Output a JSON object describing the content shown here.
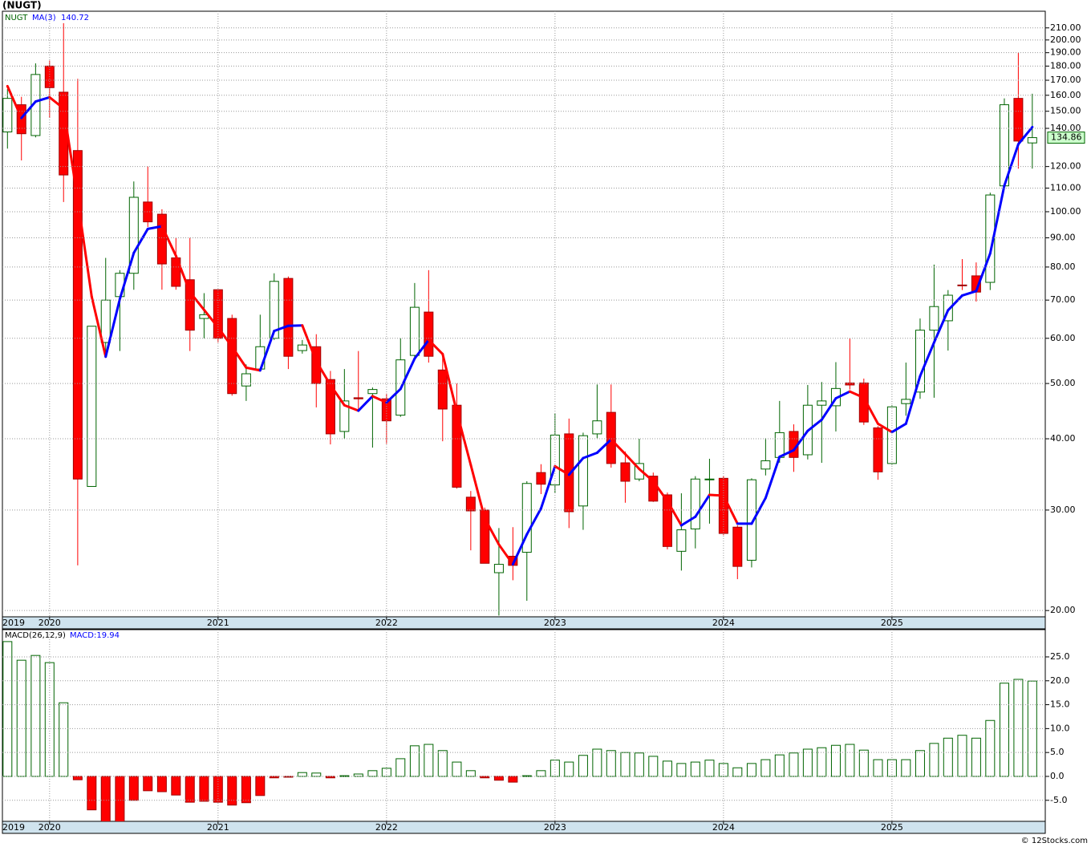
{
  "chart_data": [
    {
      "type": "candlestick",
      "title": "(NUGT)",
      "symbol": "NUGT",
      "log": true,
      "grid": true,
      "up_color": "#006400",
      "down_color": "#ff0000",
      "ma_up_color": "#0000ff",
      "ma_down_color": "#ff0000",
      "x": [
        2019.75,
        2019.833,
        2019.917,
        2020,
        2020.083,
        2020.167,
        2020.25,
        2020.333,
        2020.417,
        2020.5,
        2020.583,
        2020.667,
        2020.75,
        2020.833,
        2020.917,
        2021,
        2021.083,
        2021.167,
        2021.25,
        2021.333,
        2021.417,
        2021.5,
        2021.583,
        2021.667,
        2021.75,
        2021.833,
        2021.917,
        2022,
        2022.083,
        2022.167,
        2022.25,
        2022.333,
        2022.417,
        2022.5,
        2022.583,
        2022.667,
        2022.75,
        2022.833,
        2022.917,
        2023,
        2023.083,
        2023.167,
        2023.25,
        2023.333,
        2023.417,
        2023.5,
        2023.583,
        2023.667,
        2023.75,
        2023.833,
        2023.917,
        2024,
        2024.083,
        2024.167,
        2024.25,
        2024.333,
        2024.417,
        2024.5,
        2024.583,
        2024.667,
        2024.75,
        2024.833,
        2024.917,
        2025,
        2025.083,
        2025.167,
        2025.25,
        2025.333,
        2025.417,
        2025.5,
        2025.583,
        2025.667,
        2025.75,
        2025.833
      ],
      "open": [
        138,
        154,
        136,
        180,
        162,
        128,
        33,
        59,
        71,
        78,
        104,
        99,
        83,
        76,
        65,
        73,
        65,
        49.5,
        53,
        60,
        76.4,
        57.1,
        58,
        50.8,
        41.2,
        47.2,
        48,
        47,
        44,
        56,
        66.7,
        52.8,
        45.8,
        31.6,
        30,
        23.3,
        24.9,
        25.3,
        34.9,
        33.2,
        40.8,
        30.5,
        40.8,
        44.5,
        36.3,
        34,
        34.4,
        31.9,
        25.4,
        27.8,
        33.9,
        34.1,
        28,
        24.5,
        35.4,
        37.1,
        41.2,
        37.5,
        45.8,
        45.7,
        50.1,
        50.1,
        41.8,
        36.2,
        46.1,
        48.3,
        62,
        64.4,
        74.4,
        77.2,
        75.2,
        111,
        158,
        132
      ],
      "high": [
        164,
        159,
        182,
        184,
        214,
        171,
        63,
        83,
        79,
        113,
        120,
        101,
        90,
        90,
        72,
        73,
        66,
        54,
        66,
        78,
        77,
        59.6,
        61,
        52.6,
        53,
        57,
        49.2,
        48,
        60,
        75,
        79,
        56.6,
        50,
        32.4,
        30.3,
        27.9,
        28,
        33.7,
        36.1,
        44.3,
        43.4,
        41,
        49.8,
        49.8,
        38,
        40,
        34.9,
        32.2,
        32.1,
        34.4,
        36.9,
        34.4,
        28.2,
        34.1,
        40.1,
        46.6,
        42.4,
        49.7,
        50.3,
        54.5,
        60,
        51,
        42.1,
        45.8,
        54.4,
        65,
        80.8,
        72.9,
        82.6,
        81.5,
        108,
        158,
        190,
        161
      ],
      "low": [
        129,
        123,
        135,
        146,
        104,
        24,
        33,
        56,
        57,
        73,
        94,
        73,
        73,
        57,
        60,
        59,
        47.6,
        46.6,
        52.6,
        59.6,
        53,
        56.4,
        45.4,
        39.1,
        40,
        44.8,
        38.6,
        39.2,
        43.7,
        55.6,
        54.4,
        39.6,
        32.7,
        25.5,
        24.2,
        19.6,
        22.6,
        20.8,
        32,
        32.1,
        27.9,
        27.7,
        40.1,
        35.6,
        30.9,
        33.7,
        31,
        25.6,
        23.5,
        25.7,
        28.4,
        27.1,
        22.7,
        23.8,
        34.5,
        36.3,
        35,
        36.8,
        36.3,
        41.2,
        48.8,
        42.3,
        33.9,
        36,
        43.9,
        47,
        47.2,
        57.1,
        72.9,
        69.6,
        72.9,
        110,
        119,
        119
      ],
      "close": [
        158,
        137,
        174,
        165,
        116,
        34,
        63,
        70,
        78,
        106,
        96,
        81,
        74,
        62,
        66,
        60,
        48,
        52,
        58,
        75.5,
        55.8,
        58.4,
        50,
        40.8,
        46.6,
        47,
        48.8,
        43,
        55,
        68,
        55.8,
        45.1,
        32.9,
        29.9,
        24.2,
        24.1,
        24,
        33.4,
        33.3,
        40.6,
        29.8,
        40.5,
        43,
        36.2,
        33.7,
        36.2,
        31.1,
        25.9,
        27.7,
        34,
        34,
        27.3,
        23.9,
        33.9,
        36.6,
        41,
        37.1,
        45.8,
        46.6,
        49,
        49.7,
        42.8,
        35,
        45.5,
        46.9,
        62,
        68.2,
        71.4,
        74.2,
        72.3,
        107,
        154,
        133,
        134.86
      ],
      "ma": {
        "name": "MA(3)",
        "values": [
          166,
          146,
          156,
          158.7,
          151.7,
          105,
          71,
          55.7,
          70.3,
          84.7,
          93.3,
          94.3,
          83.7,
          72.3,
          67.3,
          62.7,
          58,
          53.3,
          52.7,
          61.8,
          63.1,
          63.2,
          54.7,
          49.7,
          45.8,
          44.8,
          47.5,
          46.3,
          48.9,
          55.3,
          59.6,
          56.3,
          44.6,
          36,
          29,
          26.1,
          24.1,
          27.2,
          30.2,
          35.8,
          34.6,
          37,
          37.8,
          39.9,
          37.6,
          35.4,
          33.7,
          31.1,
          28.2,
          29.2,
          31.9,
          31.8,
          28.4,
          28.4,
          31.5,
          37.2,
          38.2,
          41.3,
          43.2,
          47.1,
          48.4,
          47.2,
          42.5,
          41.1,
          42.5,
          51.5,
          59,
          67.2,
          71.3,
          72.6,
          84.5,
          111.1,
          131.3,
          140.72
        ]
      },
      "ylim": [
        19.5,
        224.6
      ],
      "yticks": [
        {
          "value": 20,
          "label": "20.00"
        },
        {
          "value": 30,
          "label": "30.00"
        },
        {
          "value": 40,
          "label": "40.00"
        },
        {
          "value": 50,
          "label": "50.00"
        },
        {
          "value": 60,
          "label": "60.00"
        },
        {
          "value": 70,
          "label": "70.00"
        },
        {
          "value": 80,
          "label": "80.00"
        },
        {
          "value": 90,
          "label": "90.00"
        },
        {
          "value": 100,
          "label": "100.00"
        },
        {
          "value": 110,
          "label": "110.00"
        },
        {
          "value": 120,
          "label": "120.00"
        },
        {
          "value": 140,
          "label": "140.00"
        },
        {
          "value": 150,
          "label": "150.00"
        },
        {
          "value": 160,
          "label": "160.00"
        },
        {
          "value": 170,
          "label": "170.00"
        },
        {
          "value": 180,
          "label": "180.00"
        },
        {
          "value": 190,
          "label": "190.00"
        },
        {
          "value": 200,
          "label": "200.00"
        },
        {
          "value": 210,
          "label": "210.00"
        }
      ],
      "xlim": [
        2019.72,
        2025.91
      ],
      "xticks": [
        2019,
        2020,
        2021,
        2022,
        2023,
        2024,
        2025
      ]
    },
    {
      "type": "bar",
      "title": "MACD(26,12,9)",
      "readout": "MACD:19.94",
      "grid": true,
      "pos_color": "#006400",
      "neg_color": "#ff0000",
      "x": [
        2019.75,
        2019.833,
        2019.917,
        2020,
        2020.083,
        2020.167,
        2020.25,
        2020.333,
        2020.417,
        2020.5,
        2020.583,
        2020.667,
        2020.75,
        2020.833,
        2020.917,
        2021,
        2021.083,
        2021.167,
        2021.25,
        2021.333,
        2021.417,
        2021.5,
        2021.583,
        2021.667,
        2021.75,
        2021.833,
        2021.917,
        2022,
        2022.083,
        2022.167,
        2022.25,
        2022.333,
        2022.417,
        2022.5,
        2022.583,
        2022.667,
        2022.75,
        2022.833,
        2022.917,
        2023,
        2023.083,
        2023.167,
        2023.25,
        2023.333,
        2023.417,
        2023.5,
        2023.583,
        2023.667,
        2023.75,
        2023.833,
        2023.917,
        2024,
        2024.083,
        2024.167,
        2024.25,
        2024.333,
        2024.417,
        2024.5,
        2024.583,
        2024.667,
        2024.75,
        2024.833,
        2024.917,
        2025,
        2025.083,
        2025.167,
        2025.25,
        2025.333,
        2025.417,
        2025.5,
        2025.583,
        2025.667,
        2025.75,
        2025.833
      ],
      "values": [
        28.2,
        24.3,
        25.3,
        23.8,
        15.4,
        -0.7,
        -7,
        -10.5,
        -11,
        -5,
        -3,
        -3.2,
        -3.9,
        -5.4,
        -5.2,
        -5.4,
        -6,
        -5.5,
        -4,
        -0.3,
        -0.15,
        0.8,
        0.7,
        -0.3,
        0.15,
        0.5,
        1.2,
        1.7,
        3.7,
        6.4,
        6.7,
        5.4,
        3,
        1.2,
        -0.3,
        -0.8,
        -1.2,
        0.15,
        1.2,
        3.4,
        3,
        4.4,
        5.7,
        5.4,
        5,
        4.9,
        4.2,
        3.2,
        2.7,
        3,
        3.4,
        2.7,
        1.8,
        2.7,
        3.5,
        4.5,
        4.9,
        5.7,
        6,
        6.5,
        6.7,
        5.5,
        3.5,
        3.5,
        3.5,
        5.4,
        6.9,
        8,
        8.6,
        8,
        11.7,
        19.5,
        20.3,
        19.94
      ],
      "ylim": [
        -9.4,
        30.7
      ],
      "yticks": [
        {
          "value": -5,
          "label": "-5.0"
        },
        {
          "value": 0,
          "label": "0.0"
        },
        {
          "value": 5,
          "label": "5.0"
        },
        {
          "value": 10,
          "label": "10.0"
        },
        {
          "value": 15,
          "label": "15.0"
        },
        {
          "value": 20,
          "label": "20.0"
        },
        {
          "value": 25,
          "label": "25.0"
        }
      ],
      "xlim": [
        2019.72,
        2025.91
      ],
      "xticks": [
        2019,
        2020,
        2021,
        2022,
        2023,
        2024,
        2025
      ]
    }
  ],
  "footer": "© 12Stocks.com"
}
